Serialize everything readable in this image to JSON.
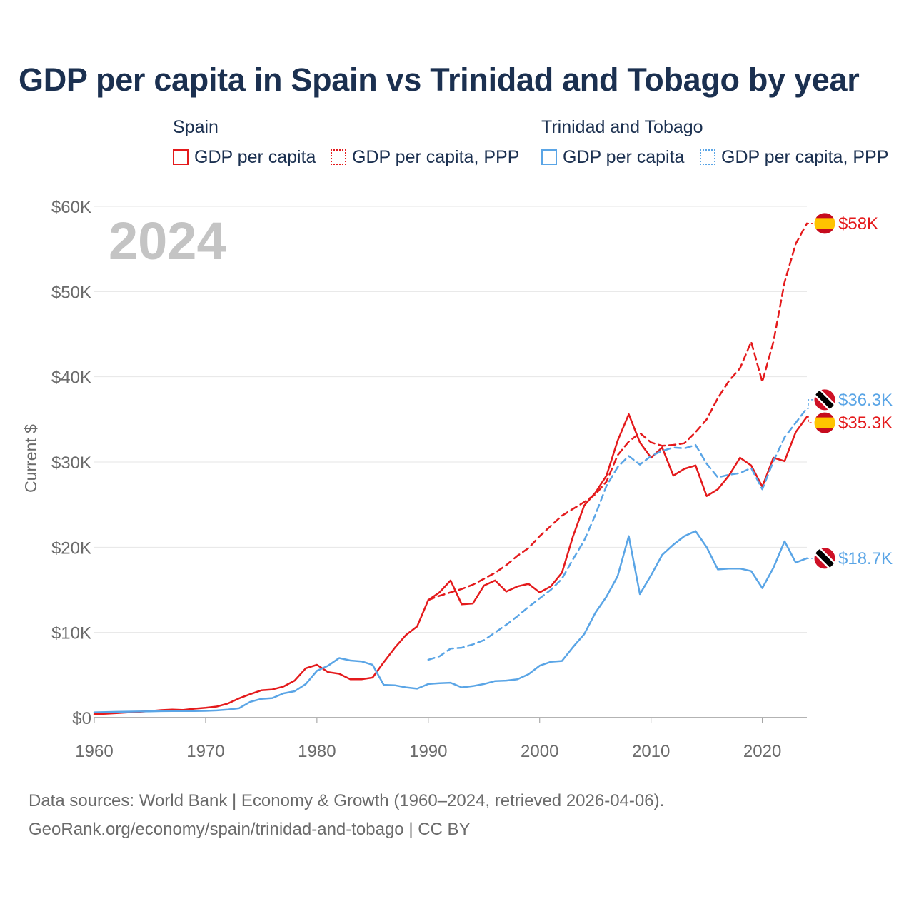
{
  "title": "GDP per capita in Spain vs Trinidad and Tobago by year",
  "legend": {
    "groups": [
      {
        "name": "Spain",
        "color": "#e41a1c",
        "items": [
          {
            "label": "GDP per capita",
            "style": "solid"
          },
          {
            "label": "GDP per capita, PPP",
            "style": "dotted"
          }
        ]
      },
      {
        "name": "Trinidad and Tobago",
        "color": "#5aa5e6",
        "items": [
          {
            "label": "GDP per capita",
            "style": "solid"
          },
          {
            "label": "GDP per capita, PPP",
            "style": "dotted"
          }
        ]
      }
    ]
  },
  "footer": {
    "line1": "Data sources: World Bank | Economy & Growth (1960–2024, retrieved 2026-04-06).",
    "line2": "GeoRank.org/economy/spain/trinidad-and-tobago | CC BY"
  },
  "chart_data": {
    "type": "line",
    "year_watermark": "2024",
    "ylabel": "Current $",
    "xlim": [
      1960,
      2024
    ],
    "ylim": [
      0,
      60000
    ],
    "x_ticks": [
      1960,
      1970,
      1980,
      1990,
      2000,
      2010,
      2020
    ],
    "x_tick_labels": [
      "1960",
      "1970",
      "1980",
      "1990",
      "2000",
      "2010",
      "2020"
    ],
    "y_ticks": [
      0,
      10000,
      20000,
      30000,
      40000,
      50000,
      60000
    ],
    "y_tick_labels": [
      "$0",
      "$10K",
      "$20K",
      "$30K",
      "$40K",
      "$50K",
      "$60K"
    ],
    "series": [
      {
        "name": "Spain GDP per capita",
        "country": "Spain",
        "color": "#e41a1c",
        "dash": "solid",
        "end_label": "$35.3K",
        "start_year": 1960,
        "values": [
          400,
          450,
          520,
          600,
          680,
          760,
          880,
          950,
          900,
          1050,
          1150,
          1300,
          1650,
          2250,
          2750,
          3200,
          3300,
          3650,
          4350,
          5800,
          6200,
          5350,
          5150,
          4500,
          4500,
          4700,
          6500,
          8200,
          9700,
          10700,
          13800,
          14700,
          16100,
          13300,
          13400,
          15500,
          16100,
          14800,
          15400,
          15700,
          14700,
          15400,
          17000,
          21300,
          24900,
          26400,
          28400,
          32500,
          35600,
          32300,
          30500,
          31700,
          28400,
          29200,
          29600,
          26000,
          26800,
          28400,
          30500,
          29600,
          27100,
          30500,
          30100,
          33500,
          35300
        ]
      },
      {
        "name": "Spain GDP per capita, PPP",
        "country": "Spain",
        "color": "#e41a1c",
        "dash": "dashed",
        "end_label": "$58K",
        "start_year": 1990,
        "values": [
          13800,
          14300,
          14700,
          15100,
          15600,
          16300,
          17000,
          17900,
          19000,
          19900,
          21300,
          22500,
          23700,
          24500,
          25300,
          26200,
          27700,
          30800,
          32400,
          33400,
          32300,
          31900,
          32000,
          32200,
          33500,
          35000,
          37500,
          39500,
          41000,
          44100,
          39400,
          44100,
          51100,
          55600,
          58000
        ]
      },
      {
        "name": "Trinidad and Tobago GDP per capita",
        "country": "Trinidad and Tobago",
        "color": "#5aa5e6",
        "dash": "solid",
        "end_label": "$18.7K",
        "start_year": 1960,
        "values": [
          620,
          650,
          680,
          700,
          720,
          740,
          760,
          770,
          780,
          780,
          800,
          850,
          950,
          1100,
          1850,
          2200,
          2300,
          2850,
          3100,
          3950,
          5500,
          6100,
          7000,
          6700,
          6600,
          6200,
          3850,
          3800,
          3550,
          3400,
          3950,
          4050,
          4100,
          3550,
          3700,
          3950,
          4300,
          4350,
          4500,
          5100,
          6100,
          6550,
          6650,
          8300,
          9800,
          12300,
          14200,
          16600,
          21300,
          14500,
          16700,
          19100,
          20300,
          21300,
          21900,
          20000,
          17400,
          17500,
          17500,
          17200,
          15200,
          17600,
          20700,
          18200,
          18700
        ]
      },
      {
        "name": "Trinidad and Tobago GDP per capita, PPP",
        "country": "Trinidad and Tobago",
        "color": "#5aa5e6",
        "dash": "dashed",
        "end_label": "$36.3K",
        "start_year": 1990,
        "values": [
          6800,
          7200,
          8100,
          8200,
          8600,
          9100,
          10000,
          10900,
          11900,
          13000,
          14000,
          15000,
          16300,
          18600,
          20800,
          23800,
          27200,
          29400,
          30700,
          29700,
          30700,
          31300,
          31700,
          31600,
          32000,
          29800,
          28200,
          28500,
          28700,
          29300,
          26800,
          30100,
          32900,
          34600,
          36300
        ]
      }
    ],
    "end_markers": [
      {
        "country": "Spain",
        "label": "$58K",
        "value": 58000,
        "color": "#e41a1c",
        "flag": "spain-flag",
        "anchor_value": 58000
      },
      {
        "country": "Trinidad and Tobago",
        "label": "$36.3K",
        "value": 37300,
        "color": "#5aa5e6",
        "flag": "tt-flag",
        "anchor_value": 36300
      },
      {
        "country": "Spain",
        "label": "$35.3K",
        "value": 34600,
        "color": "#e41a1c",
        "flag": "spain-flag",
        "anchor_value": 35300
      },
      {
        "country": "Trinidad and Tobago",
        "label": "$18.7K",
        "value": 18700,
        "color": "#5aa5e6",
        "flag": "tt-flag",
        "anchor_value": 18700
      }
    ]
  }
}
